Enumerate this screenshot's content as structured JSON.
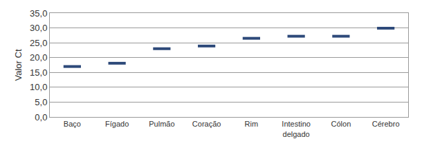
{
  "chart_data": {
    "type": "scatter",
    "y_label": "Valor Ct",
    "categories": [
      "Baço",
      "Fígado",
      "Pulmão",
      "Coração",
      "Rim",
      "Intestino delgado",
      "Cólon",
      "Cérebro"
    ],
    "values": [
      17.0,
      18.1,
      23.0,
      23.9,
      26.5,
      27.2,
      27.2,
      29.9
    ],
    "color": "#2e4a7a",
    "marker": "dash",
    "ylim": [
      0,
      35
    ],
    "yticks": [
      {
        "value": 0,
        "label": "0,0"
      },
      {
        "value": 5,
        "label": "5,0"
      },
      {
        "value": 10,
        "label": "10,0"
      },
      {
        "value": 15,
        "label": "15,0"
      },
      {
        "value": 20,
        "label": "20,0"
      },
      {
        "value": 25,
        "label": "25,0"
      },
      {
        "value": 30,
        "label": "30,0"
      },
      {
        "value": 35,
        "label": "35,0"
      }
    ],
    "grid": true
  }
}
